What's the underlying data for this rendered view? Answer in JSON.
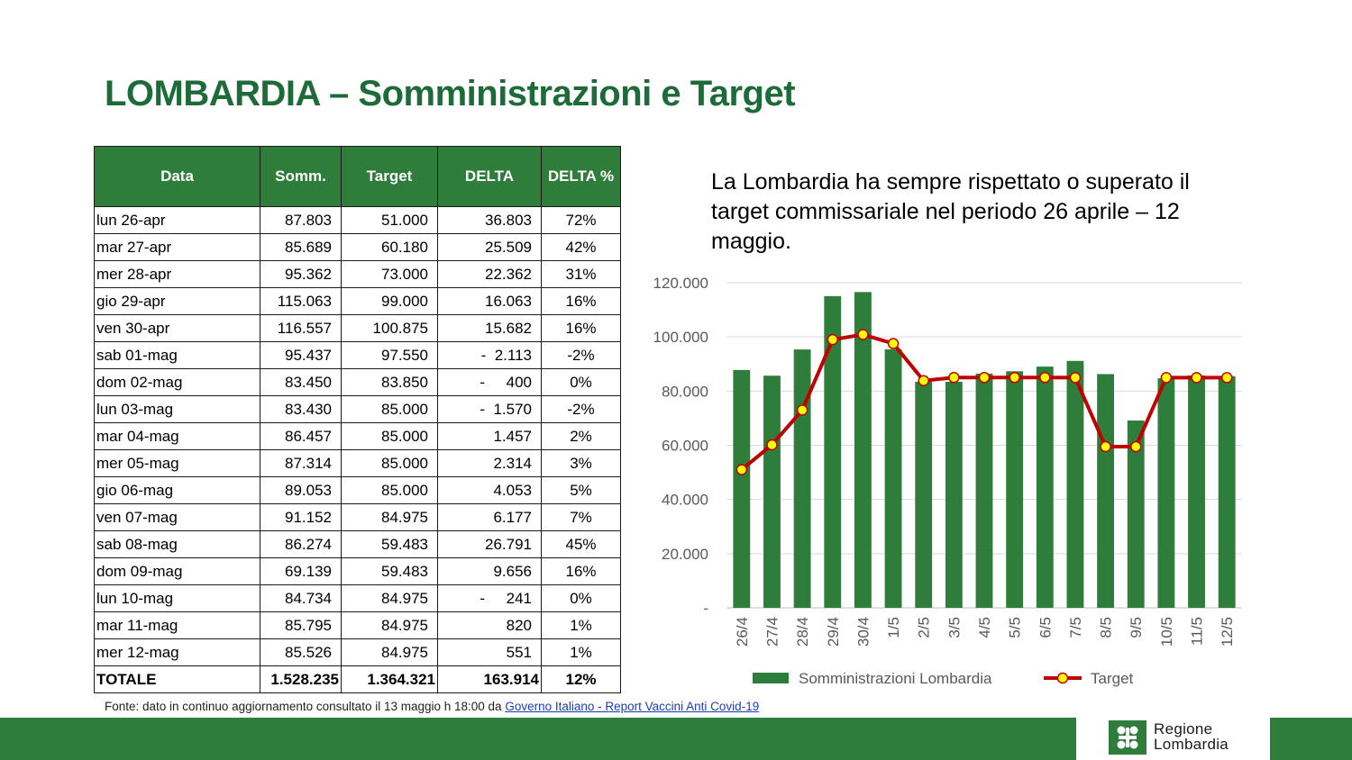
{
  "title": "LOMBARDIA – Somministrazioni e Target",
  "table": {
    "headers": [
      "Data",
      "Somm.",
      "Target",
      "DELTA",
      "DELTA %"
    ],
    "rows": [
      [
        "lun 26-apr",
        "87.803",
        "51.000",
        "36.803",
        "72%"
      ],
      [
        "mar 27-apr",
        "85.689",
        "60.180",
        "25.509",
        "42%"
      ],
      [
        "mer 28-apr",
        "95.362",
        "73.000",
        "22.362",
        "31%"
      ],
      [
        "gio 29-apr",
        "115.063",
        "99.000",
        "16.063",
        "16%"
      ],
      [
        "ven 30-apr",
        "116.557",
        "100.875",
        "15.682",
        "16%"
      ],
      [
        "sab 01-mag",
        "95.437",
        "97.550",
        "-  2.113",
        "-2%"
      ],
      [
        "dom 02-mag",
        "83.450",
        "83.850",
        "-     400",
        "0%"
      ],
      [
        "lun 03-mag",
        "83.430",
        "85.000",
        "-  1.570",
        "-2%"
      ],
      [
        "mar 04-mag",
        "86.457",
        "85.000",
        "1.457",
        "2%"
      ],
      [
        "mer 05-mag",
        "87.314",
        "85.000",
        "2.314",
        "3%"
      ],
      [
        "gio 06-mag",
        "89.053",
        "85.000",
        "4.053",
        "5%"
      ],
      [
        "ven 07-mag",
        "91.152",
        "84.975",
        "6.177",
        "7%"
      ],
      [
        "sab 08-mag",
        "86.274",
        "59.483",
        "26.791",
        "45%"
      ],
      [
        "dom 09-mag",
        "69.139",
        "59.483",
        "9.656",
        "16%"
      ],
      [
        "lun 10-mag",
        "84.734",
        "84.975",
        "-     241",
        "0%"
      ],
      [
        "mar 11-mag",
        "85.795",
        "84.975",
        "820",
        "1%"
      ],
      [
        "mer 12-mag",
        "85.526",
        "84.975",
        "551",
        "1%"
      ]
    ],
    "total": [
      "TOTALE",
      "1.528.235",
      "1.364.321",
      "163.914",
      "12%"
    ]
  },
  "source": {
    "prefix": "Fonte: dato in continuo aggiornamento consultato il 13 maggio h 18:00 da ",
    "link_text": "Governo Italiano - Report Vaccini Anti Covid-19"
  },
  "intro_text": "La Lombardia ha sempre rispettato o superato il target commissariale nel periodo 26 aprile – 12 maggio.",
  "logo": {
    "line1": "Regione",
    "line2": "Lombardia"
  },
  "colors": {
    "brand_green": "#2e7d3a",
    "title_green": "#1e6b3a",
    "target_line": "#c00000",
    "marker": "#ffff00"
  },
  "chart_data": {
    "type": "bar",
    "categories": [
      "26/4",
      "27/4",
      "28/4",
      "29/4",
      "30/4",
      "1/5",
      "2/5",
      "3/5",
      "4/5",
      "5/5",
      "6/5",
      "7/5",
      "8/5",
      "9/5",
      "10/5",
      "11/5",
      "12/5"
    ],
    "series": [
      {
        "name": "Somministrazioni Lombardia",
        "type": "bar",
        "color": "#2e7d3a",
        "values": [
          87803,
          85689,
          95362,
          115063,
          116557,
          95437,
          83450,
          83430,
          86457,
          87314,
          89053,
          91152,
          86274,
          69139,
          84734,
          85795,
          85526
        ]
      },
      {
        "name": "Target",
        "type": "line",
        "color": "#c00000",
        "marker": "#ffff00",
        "values": [
          51000,
          60180,
          73000,
          99000,
          100875,
          97550,
          83850,
          85000,
          85000,
          85000,
          85000,
          84975,
          59483,
          59483,
          84975,
          84975,
          84975
        ]
      }
    ],
    "y_ticks": [
      "-",
      "20.000",
      "40.000",
      "60.000",
      "80.000",
      "100.000",
      "120.000"
    ],
    "ylim": [
      0,
      120000
    ],
    "grid": true,
    "legend_position": "bottom"
  }
}
